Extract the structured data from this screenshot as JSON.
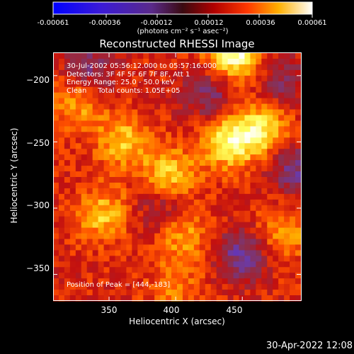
{
  "colorbar": {
    "tick_labels": [
      "-0.00061",
      "-0.00036",
      "-0.00012",
      "0.00012",
      "0.00036",
      "0.00061"
    ],
    "tick_values": [
      -0.00061,
      -0.00036,
      -0.00012,
      0.00012,
      0.00036,
      0.00061
    ],
    "range": [
      -0.00061,
      0.00061
    ],
    "units": "(photons cm⁻² s⁻¹ asec⁻²)"
  },
  "chart_data": {
    "type": "heatmap",
    "title": "Reconstructed RHESSI Image",
    "xlabel": "Heliocentric X (arcsec)",
    "ylabel": "Heliocentric Y (arcsec)",
    "xlim": [
      308,
      494
    ],
    "ylim": [
      -370,
      -183
    ],
    "x_ticks": [
      350,
      400,
      450
    ],
    "y_ticks": [
      -200,
      -250,
      -300,
      -350
    ],
    "x_tick_labels": [
      "350",
      "400",
      "450"
    ],
    "y_tick_labels": [
      "−200",
      "−250",
      "−300",
      "−350"
    ],
    "colormap": [
      "#000000",
      "#1010ff",
      "#5a2bd0",
      "#6a3aa8",
      "#8a3050",
      "#c21010",
      "#ff5000",
      "#ffb000",
      "#ffff60",
      "#ffffff"
    ],
    "hotspots": [
      {
        "x": 444,
        "y": -183,
        "value": 0.00061
      },
      {
        "x": 440,
        "y": -250,
        "value": 0.0005
      },
      {
        "x": 465,
        "y": -240,
        "value": 0.00045
      },
      {
        "x": 395,
        "y": -275,
        "value": 0.0004
      },
      {
        "x": 360,
        "y": -250,
        "value": 0.00035
      },
      {
        "x": 345,
        "y": -305,
        "value": 0.00035
      },
      {
        "x": 405,
        "y": -320,
        "value": 0.0003
      },
      {
        "x": 325,
        "y": -220,
        "value": 0.0003
      },
      {
        "x": 480,
        "y": -320,
        "value": 0.00028
      },
      {
        "x": 400,
        "y": -360,
        "value": 0.0002
      }
    ],
    "coldspots": [
      {
        "x": 450,
        "y": -335,
        "value": -0.0004
      },
      {
        "x": 490,
        "y": -270,
        "value": -0.00035
      },
      {
        "x": 425,
        "y": -215,
        "value": -0.0003
      },
      {
        "x": 335,
        "y": -195,
        "value": -0.0003
      },
      {
        "x": 390,
        "y": -300,
        "value": -0.00025
      },
      {
        "x": 480,
        "y": -205,
        "value": -0.00025
      }
    ]
  },
  "overlay": {
    "time_range": "30-Jul-2002 05:56:12.000 to 05:57:16.000",
    "detectors": "Detectors: 3F 4F 5F 6F 7F 8F, Att 1",
    "energy": "Energy Range: 25.0 - 50.0 keV",
    "clean": "Clean     Total counts: 1.05E+05",
    "peak": "Position of Peak = [444,-183]"
  },
  "timestamp": "30-Apr-2022 12:08"
}
